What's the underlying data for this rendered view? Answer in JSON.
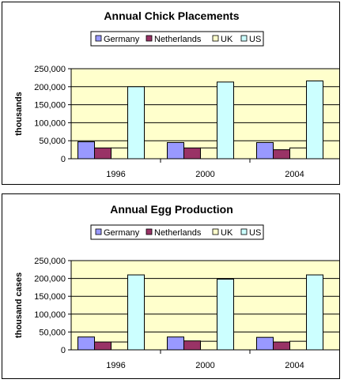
{
  "chart_data": [
    {
      "type": "bar",
      "title": "Annual Chick Placements",
      "ylabel": "thousands",
      "xlabel": "",
      "categories": [
        "1996",
        "2000",
        "2004"
      ],
      "ylim": [
        0,
        250000
      ],
      "yticks": [
        "0",
        "50,000",
        "100,000",
        "150,000",
        "200,000",
        "250,000"
      ],
      "yticks_values": [
        0,
        50000,
        100000,
        150000,
        200000,
        250000
      ],
      "legend_position": "top",
      "grid": true,
      "series": [
        {
          "name": "Germany",
          "color": "#9999ff",
          "values": [
            47000,
            45000,
            45000
          ]
        },
        {
          "name": "Netherlands",
          "color": "#993366",
          "values": [
            30000,
            30000,
            25000
          ]
        },
        {
          "name": "UK",
          "color": "#ffffcc",
          "values": [
            30000,
            30000,
            30000
          ]
        },
        {
          "name": "US",
          "color": "#ccffff",
          "values": [
            200000,
            213000,
            216000
          ]
        }
      ]
    },
    {
      "type": "bar",
      "title": "Annual Egg Production",
      "ylabel": "thousand cases",
      "xlabel": "",
      "categories": [
        "1996",
        "2000",
        "2004"
      ],
      "ylim": [
        0,
        250000
      ],
      "yticks": [
        "0",
        "50,000",
        "100,000",
        "150,000",
        "200,000",
        "250,000"
      ],
      "yticks_values": [
        0,
        50000,
        100000,
        150000,
        200000,
        250000
      ],
      "legend_position": "top",
      "grid": true,
      "series": [
        {
          "name": "Germany",
          "color": "#9999ff",
          "values": [
            36000,
            36000,
            35000
          ]
        },
        {
          "name": "Netherlands",
          "color": "#993366",
          "values": [
            22000,
            25000,
            22000
          ]
        },
        {
          "name": "UK",
          "color": "#ffffcc",
          "values": [
            22000,
            24000,
            24000
          ]
        },
        {
          "name": "US",
          "color": "#ccffff",
          "values": [
            210000,
            198000,
            210000
          ]
        }
      ]
    }
  ],
  "colors": {
    "plot_background": "#ffffcc",
    "gridline": "#000000",
    "bar_outline": "#000000"
  }
}
